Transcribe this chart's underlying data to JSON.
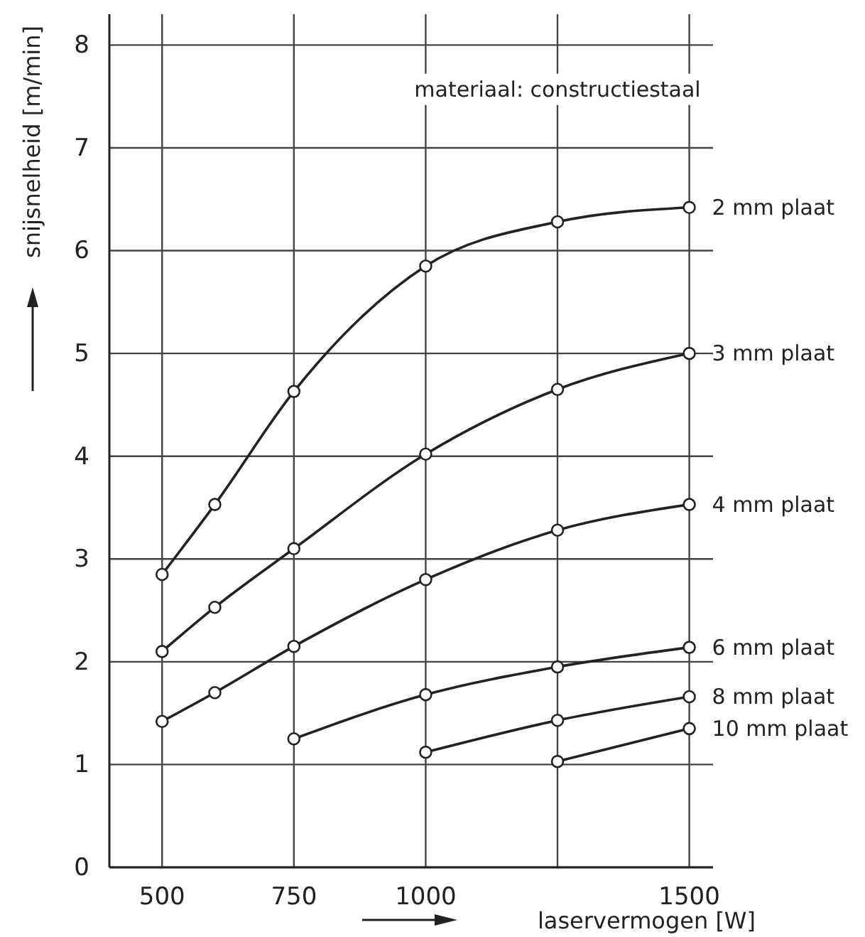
{
  "chart_data": {
    "type": "line",
    "xlabel": "laservermogen [W]",
    "ylabel": "snijsnelheid [m/min]",
    "annotations": [
      "materiaal: constructiestaal"
    ],
    "xlim": [
      400,
      1545
    ],
    "xticks": [
      500,
      750,
      1000,
      {
        "value": 1250,
        "label": null
      },
      1500
    ],
    "ylim": [
      0,
      8.3
    ],
    "yticks": [
      0,
      1,
      2,
      3,
      4,
      5,
      6,
      7,
      8
    ],
    "grid": true,
    "legend": false,
    "marker": "circle",
    "line_style": "solid",
    "series": [
      {
        "name": "2 mm plaat",
        "color": "#222222",
        "x": [
          500,
          600,
          750,
          1000,
          1250,
          1500
        ],
        "values": [
          2.85,
          3.53,
          4.63,
          5.85,
          6.28,
          6.42
        ]
      },
      {
        "name": "3 mm plaat",
        "color": "#222222",
        "x": [
          500,
          600,
          750,
          1000,
          1250,
          1500
        ],
        "values": [
          2.1,
          2.53,
          3.1,
          4.02,
          4.65,
          5.0
        ]
      },
      {
        "name": "4 mm plaat",
        "color": "#222222",
        "x": [
          500,
          600,
          750,
          1000,
          1250,
          1500
        ],
        "values": [
          1.42,
          1.7,
          2.15,
          2.8,
          3.28,
          3.53
        ]
      },
      {
        "name": "6 mm plaat",
        "color": "#222222",
        "x": [
          750,
          1000,
          1250,
          1500
        ],
        "values": [
          1.25,
          1.68,
          1.95,
          2.14
        ]
      },
      {
        "name": "8 mm plaat",
        "color": "#222222",
        "x": [
          1000,
          1250,
          1500
        ],
        "values": [
          1.12,
          1.43,
          1.66
        ]
      },
      {
        "name": "10 mm plaat",
        "color": "#222222",
        "x": [
          1250,
          1500
        ],
        "values": [
          1.03,
          1.35
        ]
      }
    ]
  }
}
